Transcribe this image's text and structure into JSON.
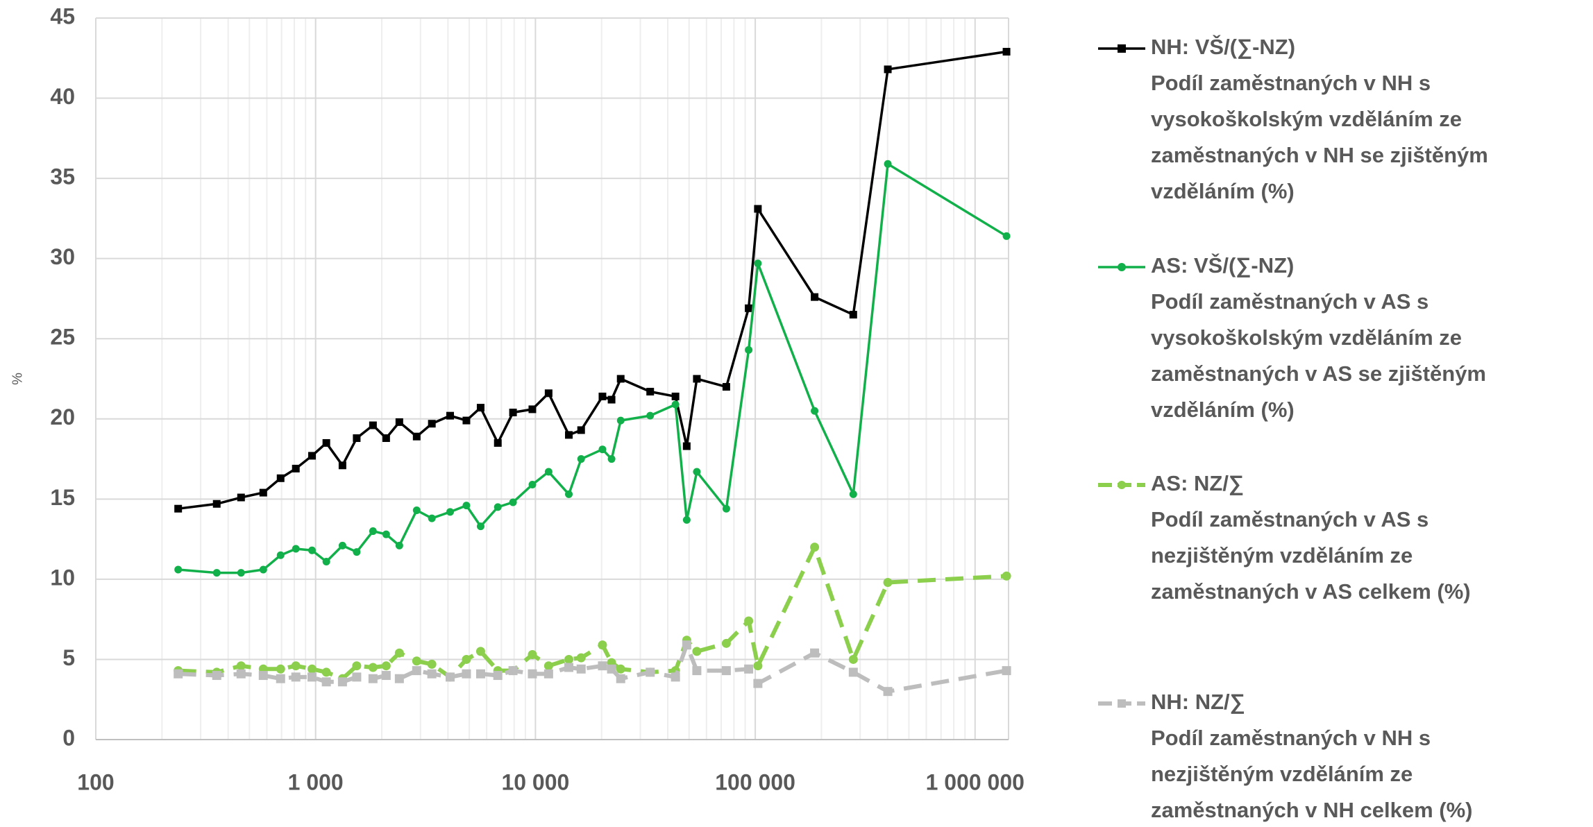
{
  "chart_data": {
    "type": "line",
    "ylabel": "%",
    "xlog": true,
    "grid": true,
    "minor_grid": true,
    "xlim": [
      100,
      1420000
    ],
    "ylim": [
      0,
      45
    ],
    "xticks": [
      {
        "value": 100,
        "label": "100"
      },
      {
        "value": 1000,
        "label": "1 000"
      },
      {
        "value": 10000,
        "label": "10 000"
      },
      {
        "value": 100000,
        "label": "100 000"
      },
      {
        "value": 1000000,
        "label": "1 000 000"
      }
    ],
    "yticks": [
      0,
      5,
      10,
      15,
      20,
      25,
      30,
      35,
      40,
      45
    ],
    "legend": "right",
    "x": [
      237,
      355,
      458,
      578,
      693,
      813,
      963,
      1119,
      1325,
      1538,
      1824,
      2094,
      2404,
      2883,
      3379,
      4092,
      4853,
      5633,
      6745,
      7907,
      9684,
      11480,
      14190,
      16140,
      20180,
      22200,
      24430,
      33270,
      43360,
      48780,
      54230,
      73850,
      93320,
      102800,
      186200,
      279200,
      400900,
      1390000
    ],
    "series": [
      {
        "name": "NH: VŠ/(∑-NZ)",
        "description": [
          "Podíl zaměstnaných v NH s",
          "vysokoškolským vzděláním ze",
          "zaměstnaných v NH se zjištěným",
          "vzděláním (%)"
        ],
        "color": "#000000",
        "marker": "square",
        "dashed": false,
        "values": [
          14.4,
          14.7,
          15.1,
          15.4,
          16.3,
          16.9,
          17.7,
          18.5,
          17.1,
          18.8,
          19.6,
          18.8,
          19.8,
          18.9,
          19.7,
          20.2,
          19.9,
          20.7,
          18.5,
          20.4,
          20.6,
          21.6,
          19.0,
          19.3,
          21.4,
          21.2,
          22.5,
          21.7,
          21.4,
          18.3,
          22.5,
          22.0,
          26.9,
          33.1,
          27.6,
          26.5,
          41.8,
          42.9
        ]
      },
      {
        "name": "AS: VŠ/(∑-NZ)",
        "description": [
          "Podíl zaměstnaných v AS s",
          "vysokoškolským vzděláním ze",
          "zaměstnaných v AS se zjištěným",
          "vzděláním (%)"
        ],
        "color": "#12b04a",
        "marker": "circle",
        "dashed": false,
        "values": [
          10.6,
          10.4,
          10.4,
          10.6,
          11.5,
          11.9,
          11.8,
          11.1,
          12.1,
          11.7,
          13.0,
          12.8,
          12.1,
          14.3,
          13.8,
          14.2,
          14.6,
          13.3,
          14.5,
          14.8,
          15.9,
          16.7,
          15.3,
          17.5,
          18.1,
          17.5,
          19.9,
          20.2,
          20.9,
          13.7,
          16.7,
          14.4,
          24.3,
          29.7,
          20.5,
          15.3,
          35.9,
          31.4
        ]
      },
      {
        "name": "AS: NZ/∑",
        "description": [
          "Podíl zaměstnaných v AS s",
          "nezjištěným vzděláním ze",
          "zaměstnaných v AS celkem (%)"
        ],
        "color": "#8ccf4d",
        "marker": "circle",
        "dashed": true,
        "values": [
          4.3,
          4.2,
          4.6,
          4.4,
          4.4,
          4.6,
          4.4,
          4.2,
          3.8,
          4.6,
          4.5,
          4.6,
          5.4,
          4.9,
          4.7,
          3.9,
          5.0,
          5.5,
          4.3,
          4.3,
          5.3,
          4.6,
          5.0,
          5.1,
          5.9,
          4.8,
          4.4,
          4.2,
          4.3,
          6.2,
          5.5,
          6.0,
          7.4,
          4.6,
          12.0,
          5.0,
          9.8,
          10.2
        ]
      },
      {
        "name": "NH: NZ/∑",
        "description": [
          "Podíl zaměstnaných v NH s",
          "nezjištěným vzděláním ze",
          "zaměstnaných v NH celkem (%)"
        ],
        "color": "#bdbdbd",
        "marker": "square",
        "dashed": true,
        "values": [
          4.1,
          4.0,
          4.1,
          4.0,
          3.8,
          3.9,
          3.9,
          3.6,
          3.6,
          3.9,
          3.8,
          4.0,
          3.8,
          4.3,
          4.1,
          3.9,
          4.1,
          4.1,
          4.0,
          4.3,
          4.1,
          4.1,
          4.5,
          4.4,
          4.6,
          4.4,
          3.8,
          4.2,
          3.9,
          5.9,
          4.3,
          4.3,
          4.4,
          3.5,
          5.4,
          4.2,
          3.0,
          4.3
        ]
      }
    ]
  }
}
